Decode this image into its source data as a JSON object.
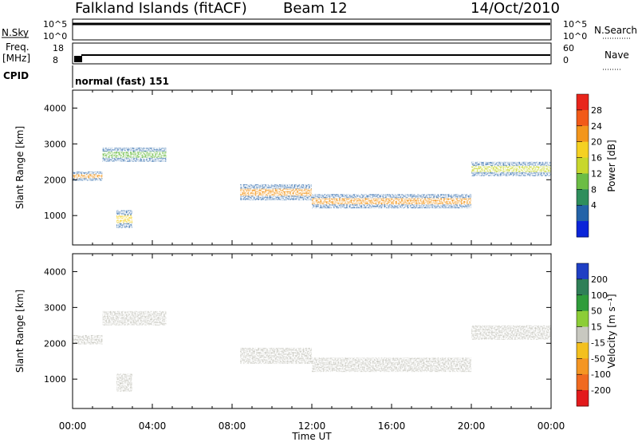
{
  "header": {
    "station": "Falkland Islands (fitACF)",
    "beam": "Beam 12",
    "date": "14/Oct/2010"
  },
  "strip": {
    "nsky_label": "N.Sky",
    "nsearch_label": "N.Search",
    "nsky_ticks": [
      "10^5",
      "10^0"
    ],
    "nsearch_ticks": [
      "10^5",
      "10^0"
    ],
    "freq_label_1": "Freq.",
    "freq_label_2": "[MHz]",
    "freq_ticks": [
      "18",
      "8"
    ],
    "nave_label": "Nave",
    "nave_ticks": [
      "60",
      "0"
    ],
    "cpid_label": "CPID",
    "cpid_text": "normal (fast) 151"
  },
  "panels": {
    "ylabel": "Slant Range [km]",
    "yticks": [
      "4000",
      "3000",
      "2000",
      "1000"
    ],
    "xlabel": "Time UT",
    "xticks": [
      "00:00",
      "04:00",
      "08:00",
      "12:00",
      "16:00",
      "20:00",
      "00:00"
    ]
  },
  "colorbars": {
    "power": {
      "label": "Power [dB]",
      "ticks": [
        "28",
        "24",
        "20",
        "16",
        "12",
        "8",
        "4"
      ],
      "colors": [
        "#e8251b",
        "#f25a18",
        "#f3961c",
        "#f5d122",
        "#c8d72c",
        "#6cbd45",
        "#2e8e5c",
        "#2463a8",
        "#0b25d9"
      ]
    },
    "velocity": {
      "label": "Velocity [m s⁻¹]",
      "ticks": [
        "200",
        "100",
        "50",
        "15",
        "-15",
        "-50",
        "-100",
        "-200"
      ],
      "colors": [
        "#1f3fc4",
        "#2f7f57",
        "#2f9c3a",
        "#8ccd37",
        "#c8c8c0",
        "#f3c01f",
        "#f49623",
        "#f06a20",
        "#e31a1c"
      ]
    }
  },
  "chart_data": {
    "type": "heatmap",
    "title": "Falkland Islands (fitACF)",
    "subtitle": "Beam 12 — 14/Oct/2010",
    "xlabel": "Time UT",
    "ylabel": "Slant Range [km]",
    "x_range_hours": [
      0,
      24
    ],
    "y_range_km": [
      180,
      4500
    ],
    "panels": [
      {
        "name": "Power",
        "colorbar": "Power [dB]",
        "value_range": [
          0,
          30
        ],
        "echo_regions": [
          {
            "t_start": 0.0,
            "t_end": 1.5,
            "range_center_km": 2100,
            "range_width_km": 260,
            "power_db": 22
          },
          {
            "t_start": 1.5,
            "t_end": 4.7,
            "range_center_km": 2700,
            "range_width_km": 400,
            "power_db": 12
          },
          {
            "t_start": 2.2,
            "t_end": 3.0,
            "range_center_km": 900,
            "range_width_km": 500,
            "power_db": 18
          },
          {
            "t_start": 8.4,
            "t_end": 12.0,
            "range_center_km": 1650,
            "range_width_km": 450,
            "power_db": 24
          },
          {
            "t_start": 12.0,
            "t_end": 20.0,
            "range_center_km": 1400,
            "range_width_km": 400,
            "power_db": 22
          },
          {
            "t_start": 20.0,
            "t_end": 24.0,
            "range_center_km": 2300,
            "range_width_km": 400,
            "power_db": 16
          }
        ]
      },
      {
        "name": "Velocity",
        "colorbar": "Velocity [m s⁻¹]",
        "value_range": [
          -200,
          200
        ],
        "dominant_velocity_ms": 0
      }
    ]
  }
}
